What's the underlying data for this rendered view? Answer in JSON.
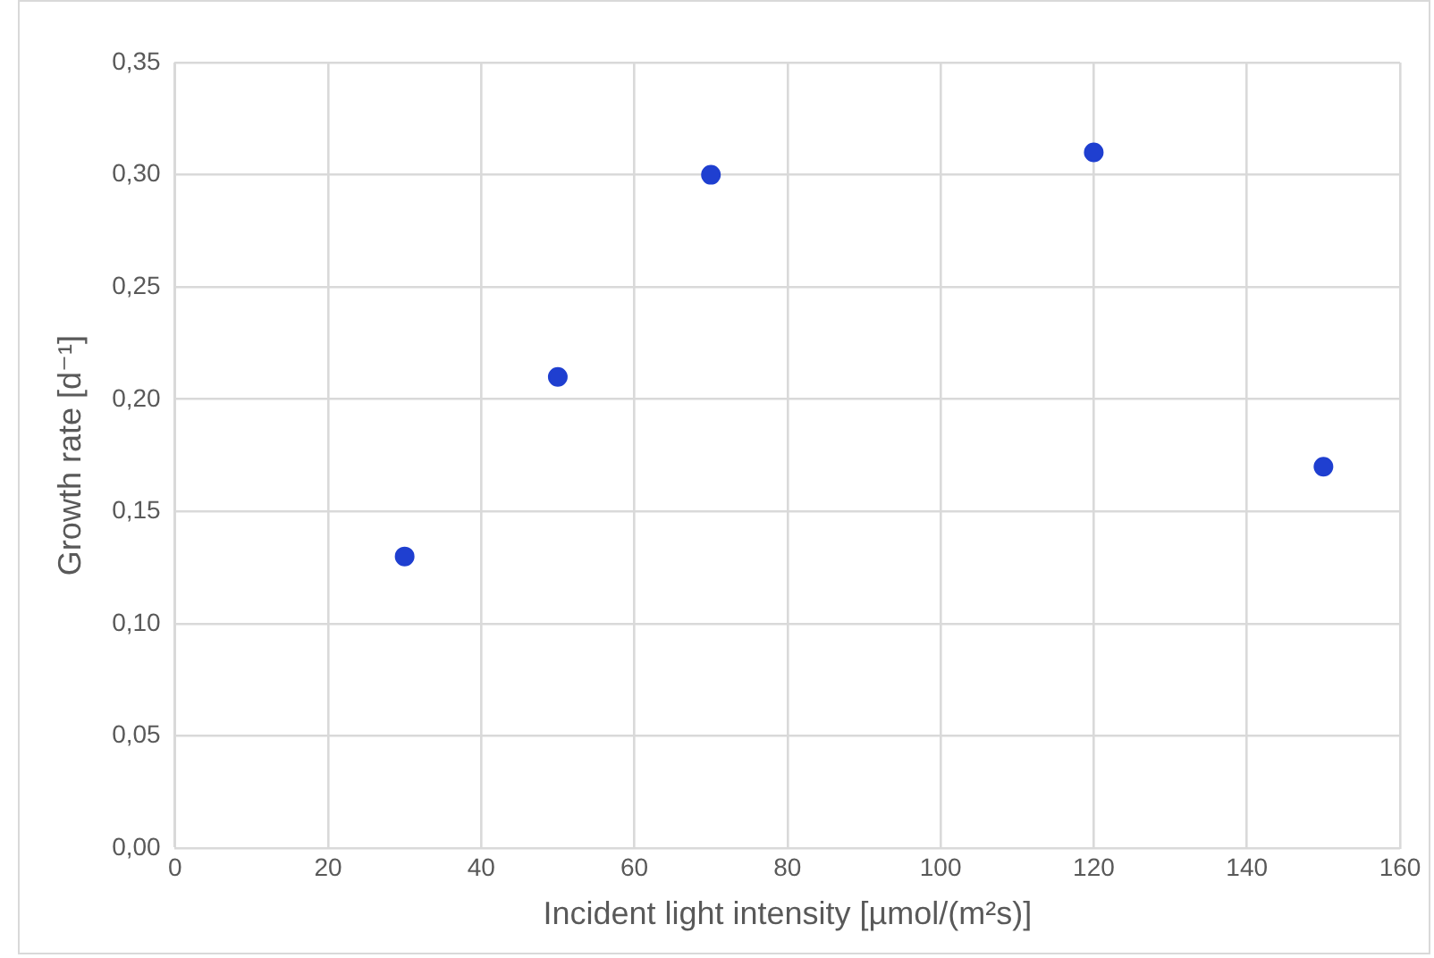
{
  "chart_data": {
    "type": "scatter",
    "xlabel": "Incident light intensity [µmol/(m²s)]",
    "ylabel": "Growth rate [d⁻¹]",
    "x": [
      30,
      50,
      70,
      120,
      150
    ],
    "series": [
      {
        "color": "#1f3fd0",
        "values": [
          0.13,
          0.21,
          0.3,
          0.31,
          0.17
        ]
      }
    ],
    "xlim": [
      0,
      160
    ],
    "xticks": [
      0,
      20,
      40,
      60,
      80,
      100,
      120,
      140,
      160
    ],
    "ylim": [
      0,
      0.35
    ],
    "yticks": [
      {
        "value": 0,
        "label": "0,00"
      },
      {
        "value": 0.05,
        "label": "0,05"
      },
      {
        "value": 0.1,
        "label": "0,10"
      },
      {
        "value": 0.15,
        "label": "0,15"
      },
      {
        "value": 0.2,
        "label": "0,20"
      },
      {
        "value": 0.25,
        "label": "0,25"
      },
      {
        "value": 0.3,
        "label": "0,30"
      },
      {
        "value": 0.35,
        "label": "0,35"
      }
    ],
    "grid": true,
    "marker": "circle",
    "legend": false
  }
}
